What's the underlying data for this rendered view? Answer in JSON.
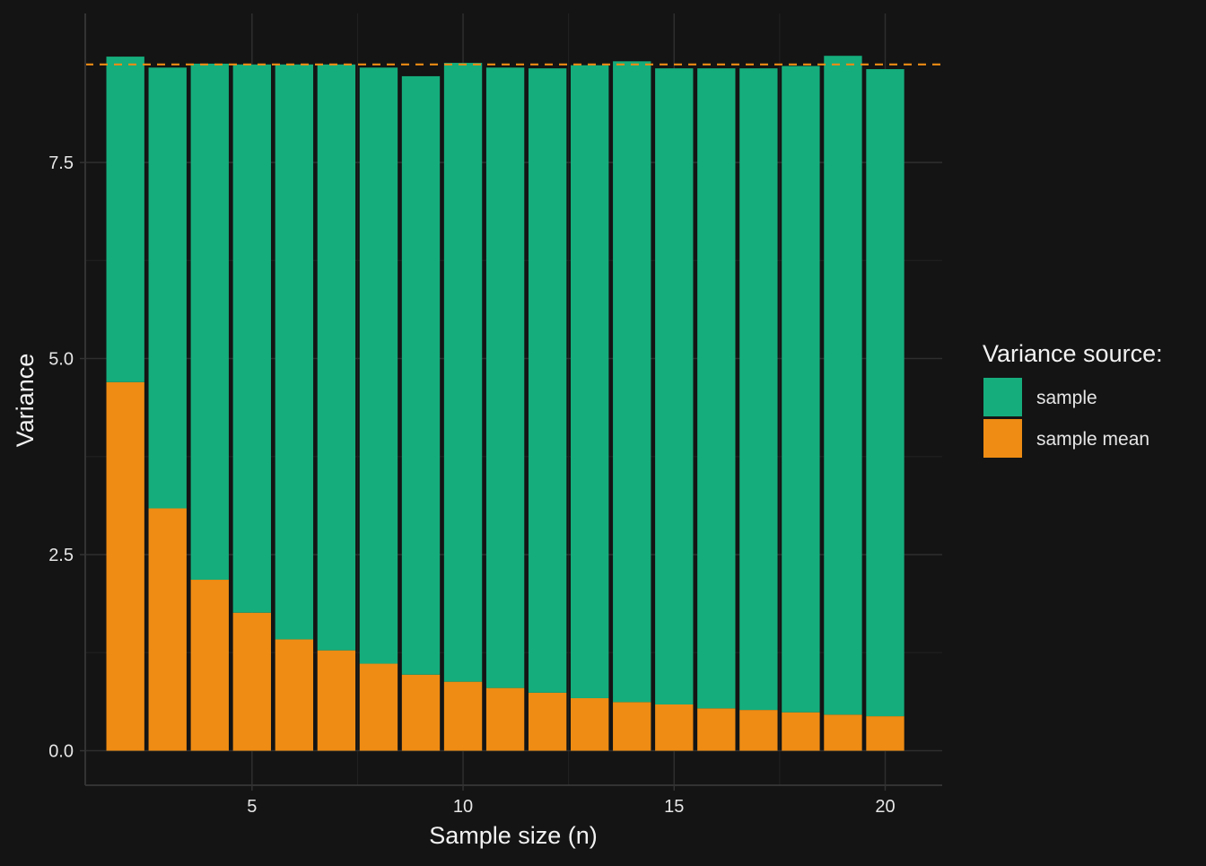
{
  "chart_data": {
    "type": "bar",
    "stacked": true,
    "title": "",
    "xlabel": "Sample size (n)",
    "ylabel": "Variance",
    "x": [
      2,
      3,
      4,
      5,
      6,
      7,
      8,
      9,
      10,
      11,
      12,
      13,
      14,
      15,
      16,
      17,
      18,
      19,
      20
    ],
    "xlim": [
      1.05,
      21.35
    ],
    "ylim": [
      -0.44,
      9.4
    ],
    "x_ticks": [
      5,
      10,
      15,
      20
    ],
    "x_tick_labels": [
      "5",
      "10",
      "15",
      "20"
    ],
    "y_ticks": [
      0,
      2.5,
      5,
      7.5
    ],
    "y_tick_labels": [
      "0.0",
      "2.5",
      "5.0",
      "7.5"
    ],
    "grid": true,
    "series": [
      {
        "name": "sample mean",
        "color": "#ee8c14",
        "values": [
          4.7,
          3.09,
          2.18,
          1.76,
          1.42,
          1.28,
          1.11,
          0.97,
          0.88,
          0.8,
          0.74,
          0.67,
          0.62,
          0.59,
          0.54,
          0.52,
          0.49,
          0.46,
          0.44
        ]
      },
      {
        "name": "sample",
        "color": "#15ad7c",
        "values": [
          4.15,
          5.62,
          6.58,
          6.99,
          7.33,
          7.47,
          7.6,
          7.63,
          7.89,
          7.91,
          7.96,
          8.07,
          8.17,
          8.11,
          8.16,
          8.18,
          8.24,
          8.4,
          8.25
        ]
      }
    ],
    "reference_line": {
      "y": 8.75,
      "style": "dashed",
      "color": "#ee8c14"
    },
    "legend": {
      "title": "Variance source:",
      "position": "right",
      "entries": [
        {
          "label": "sample",
          "color": "#15ad7c"
        },
        {
          "label": "sample mean",
          "color": "#ee8c14"
        }
      ]
    }
  }
}
